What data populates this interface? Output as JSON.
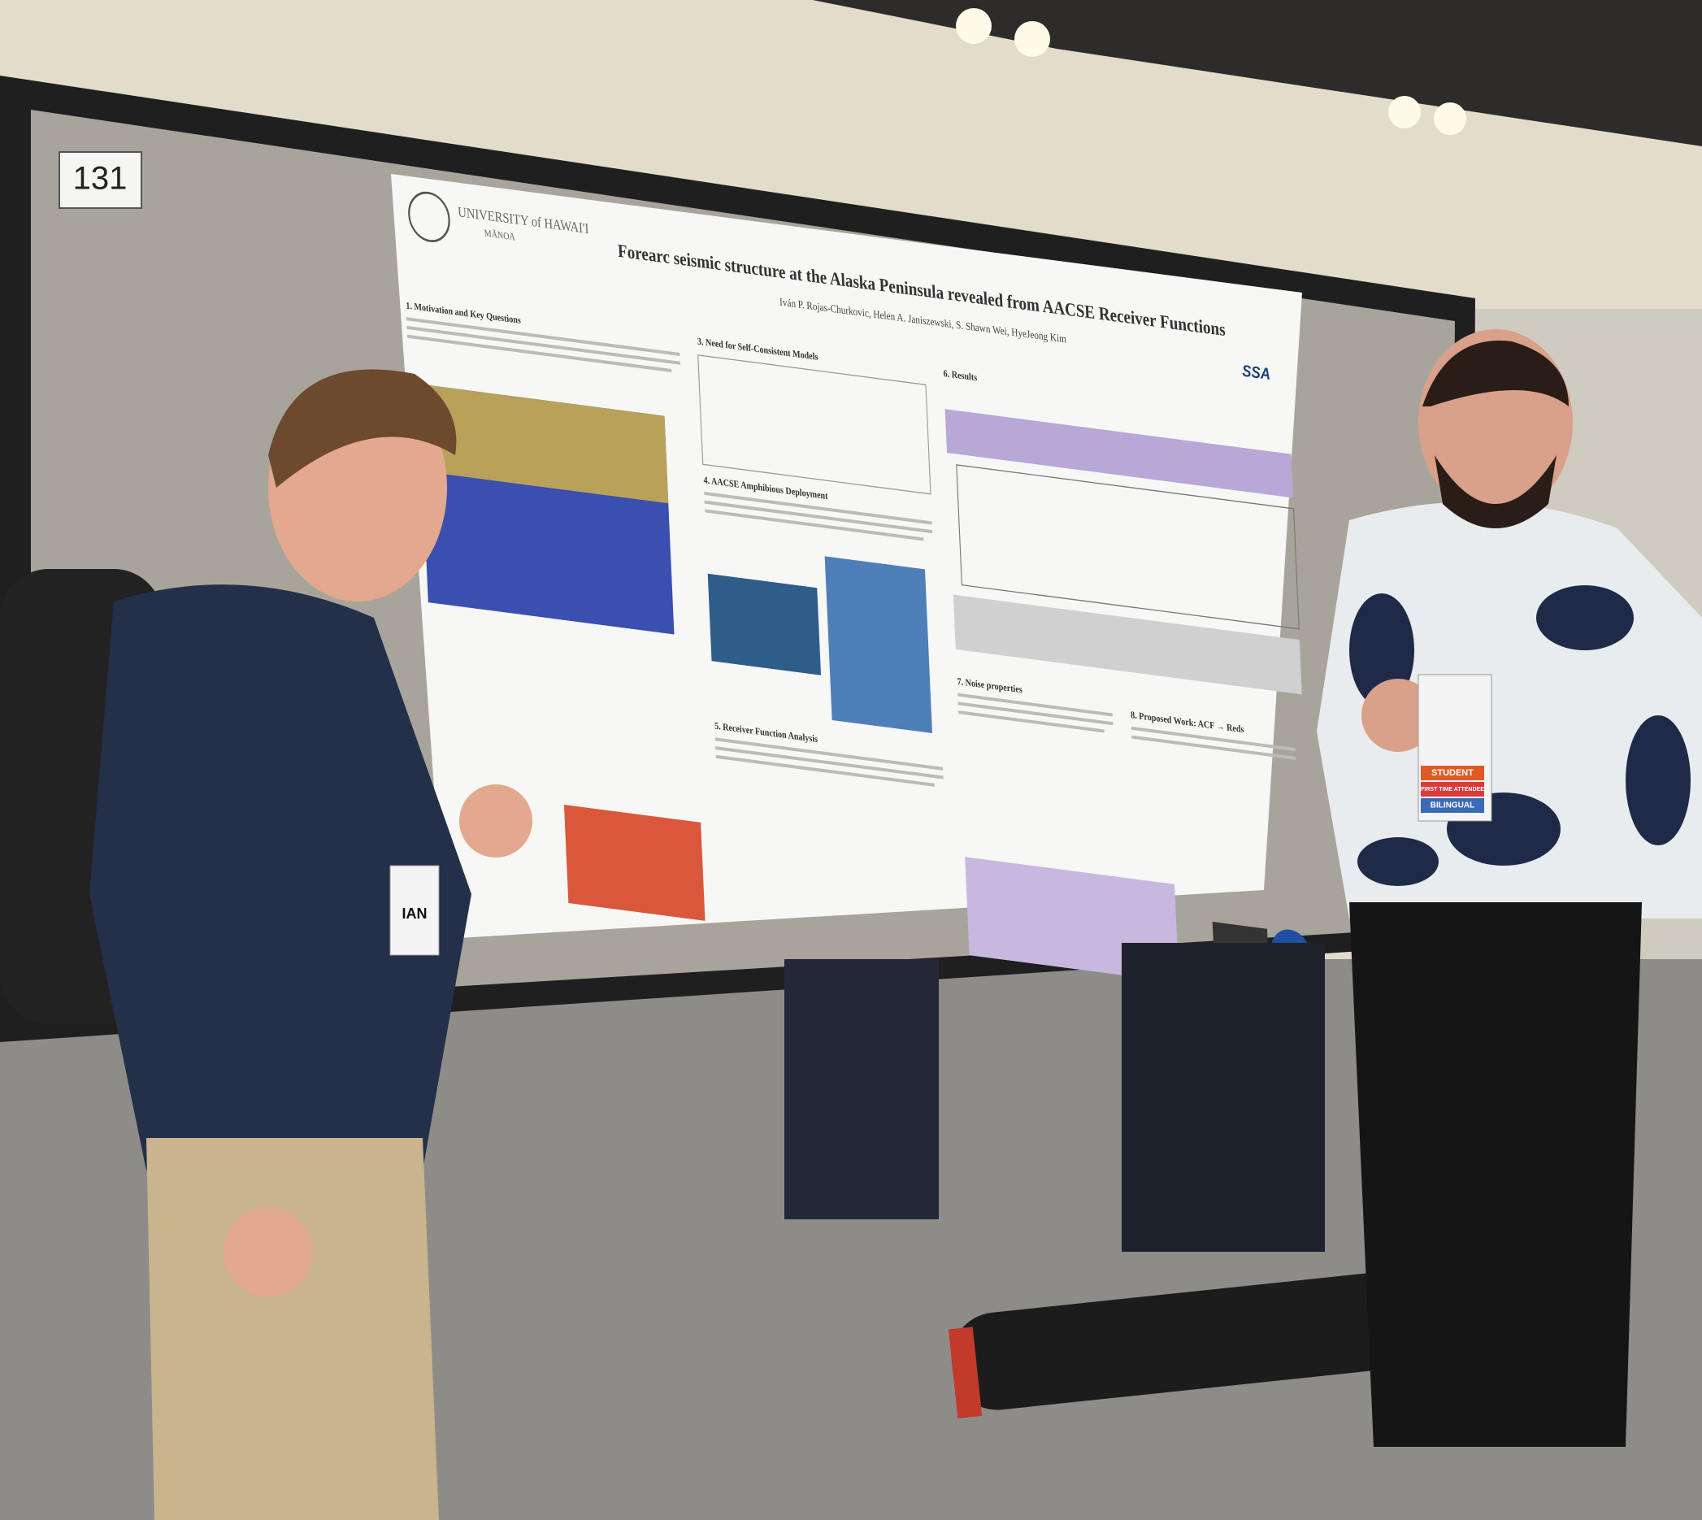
{
  "sign": {
    "number": "131"
  },
  "poster": {
    "logo": "UNIVERSITY of HAWAI'I",
    "logo_sub": "MĀNOA",
    "title": "Forearc seismic structure at the Alaska Peninsula revealed from AACSE Receiver Functions",
    "authors": "Iván P. Rojas-Churkovic, Helen A. Janiszewski, S. Shawn Wei, HyeJeong Kim",
    "society": "SSA",
    "sections": [
      "1. Motivation and Key Questions",
      "3. Need for Self-Consistent Models",
      "4. AACSE Amphibious Deployment",
      "5. Receiver Function Analysis",
      "6. Results",
      "7. Noise properties",
      "8. Proposed Work: ACF → Reds"
    ]
  },
  "badges": {
    "left_name": "IAN",
    "right": [
      "STUDENT",
      "FIRST TIME ATTENDEE",
      "BILINGUAL"
    ]
  }
}
